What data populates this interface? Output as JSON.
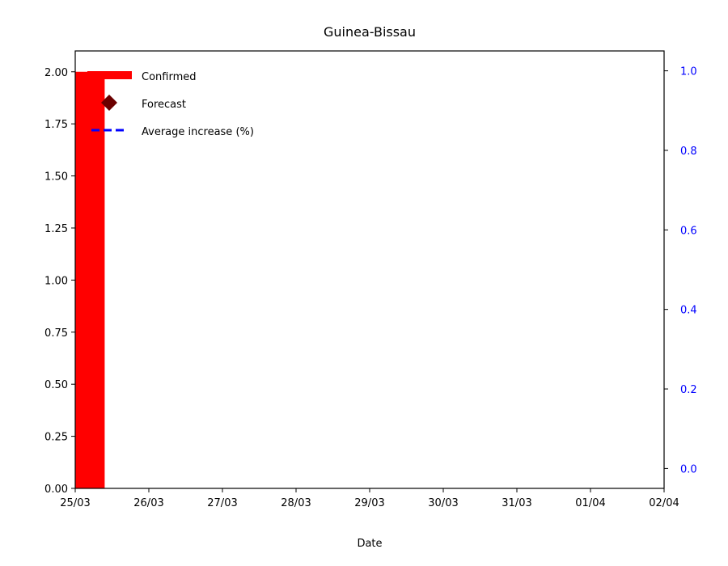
{
  "chart_data": {
    "type": "bar",
    "title": "Guinea-Bissau",
    "xlabel": "Date",
    "ylabel": "",
    "ylabel_right": "",
    "x_ticks": [
      "25/03",
      "26/03",
      "27/03",
      "28/03",
      "29/03",
      "30/03",
      "31/03",
      "01/04",
      "02/04"
    ],
    "xlim": [
      0,
      8
    ],
    "ylim": [
      0,
      2.1
    ],
    "y_ticks": [
      "0.00",
      "0.25",
      "0.50",
      "0.75",
      "1.00",
      "1.25",
      "1.50",
      "1.75",
      "2.00"
    ],
    "ylim_right": [
      -0.05,
      1.05
    ],
    "y_ticks_right": [
      "0.0",
      "0.2",
      "0.4",
      "0.6",
      "0.8",
      "1.0"
    ],
    "series": [
      {
        "name": "Confirmed",
        "kind": "bar",
        "color": "#ff0000",
        "x": [
          "25/03"
        ],
        "values": [
          2
        ]
      },
      {
        "name": "Forecast",
        "kind": "scatter",
        "marker": "diamond",
        "color": "#6b0000",
        "x": [],
        "values": []
      },
      {
        "name": "Average increase (%)",
        "kind": "line",
        "style": "dashed",
        "axis": "right",
        "color": "#0000ff",
        "x": [],
        "values": []
      }
    ],
    "grid": false,
    "legend": {
      "position": "top-left"
    },
    "right_axis_color": "#0000ff"
  }
}
